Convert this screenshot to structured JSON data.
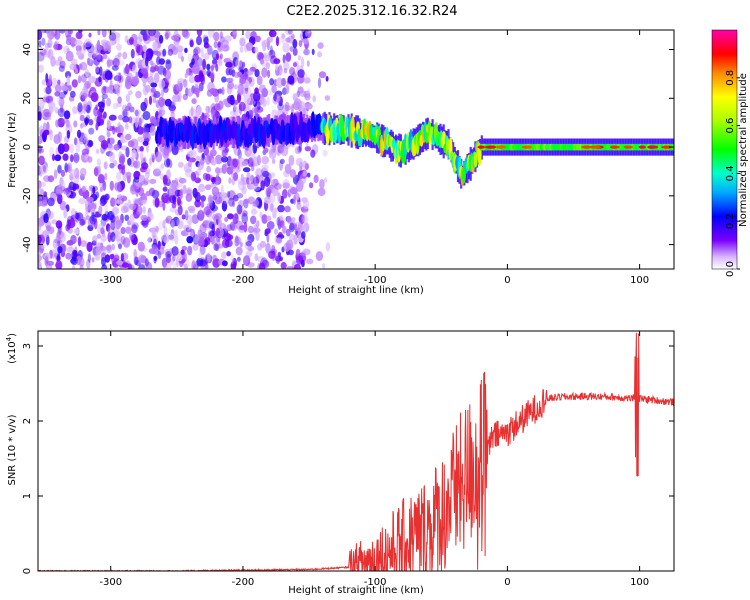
{
  "title": "C2E2.2025.312.16.32.R24",
  "chart_data": [
    {
      "type": "heatmap",
      "xlabel": "Height of straight line (km)",
      "ylabel": "Frequency (Hz)",
      "xlim": [
        -355,
        126
      ],
      "ylim": [
        -50,
        48
      ],
      "xticks": [
        -300,
        -200,
        -100,
        0,
        100
      ],
      "yticks": [
        -40,
        -20,
        0,
        20,
        40
      ],
      "colorbar": {
        "label": "Normalized spectral amplitude",
        "range": [
          0,
          1
        ],
        "ticks": [
          0.0,
          0.2,
          0.4,
          0.6,
          0.8
        ]
      },
      "ridge": {
        "description_points_x": [
          -265,
          -200,
          -150,
          -120,
          -100,
          -80,
          -60,
          -45,
          -35,
          -20,
          0,
          20,
          60,
          100,
          126
        ],
        "description_points_y": [
          6,
          6,
          8,
          7,
          4,
          -2,
          6,
          1,
          -12,
          0,
          0,
          0,
          0,
          0,
          0
        ]
      }
    },
    {
      "type": "line",
      "xlabel": "Height of straight line (km)",
      "ylabel": "SNR (10 * v/v)",
      "y_multiplier": "(x10",
      "y_multiplier_exp": "4",
      "xlim": [
        -355,
        126
      ],
      "ylim": [
        0,
        3.2
      ],
      "xticks": [
        -300,
        -200,
        -100,
        0,
        100
      ],
      "yticks": [
        0,
        1,
        2,
        3
      ],
      "series": [
        {
          "color": "#e83030",
          "x": [
            -355,
            -300,
            -250,
            -200,
            -150,
            -120,
            -100,
            -90,
            -80,
            -70,
            -60,
            -50,
            -40,
            -30,
            -20,
            -10,
            0,
            10,
            20,
            30,
            40,
            60,
            80,
            95,
            100,
            110,
            126
          ],
          "y": [
            0.0,
            0.0,
            0.0,
            0.01,
            0.02,
            0.05,
            0.15,
            0.25,
            0.35,
            0.45,
            0.55,
            0.75,
            1.0,
            1.3,
            1.5,
            1.8,
            1.85,
            2.0,
            2.15,
            2.3,
            2.32,
            2.33,
            2.32,
            2.3,
            2.3,
            2.28,
            2.25
          ]
        }
      ]
    }
  ]
}
